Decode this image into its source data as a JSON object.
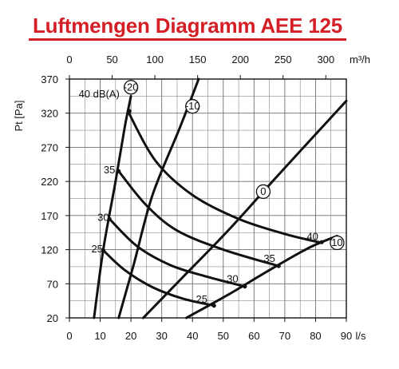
{
  "header": {
    "title": "Luftmengen Diagramm AEE 125"
  },
  "chart_data": {
    "type": "line",
    "title": "Luftmengen Diagramm AEE 125",
    "xlabel": "l/s",
    "x2label": "m³/h",
    "ylabel": "Pt [Pa]",
    "xlim": [
      0,
      90
    ],
    "x2lim": [
      0,
      324
    ],
    "ylim": [
      20,
      370
    ],
    "x_ticks": [
      0,
      10,
      20,
      30,
      40,
      50,
      60,
      70,
      80,
      90
    ],
    "x2_ticks": [
      0,
      50,
      100,
      150,
      200,
      250,
      300
    ],
    "y_ticks": [
      20,
      70,
      120,
      170,
      220,
      270,
      320,
      370
    ],
    "grid": true,
    "annotation": "40 dB(A)",
    "series": [
      {
        "name": "-20",
        "kind": "damper",
        "label_at": [
          20,
          358
        ],
        "points": [
          [
            8,
            20
          ],
          [
            11,
            120
          ],
          [
            15,
            220
          ],
          [
            18,
            300
          ],
          [
            20,
            345
          ]
        ]
      },
      {
        "name": "-10",
        "kind": "damper",
        "label_at": [
          40,
          330
        ],
        "points": [
          [
            16,
            20
          ],
          [
            21,
            100
          ],
          [
            27,
            200
          ],
          [
            36,
            300
          ],
          [
            42,
            370
          ]
        ]
      },
      {
        "name": "0",
        "kind": "damper",
        "label_at": [
          63,
          205
        ],
        "points": [
          [
            24,
            20
          ],
          [
            38,
            85
          ],
          [
            52,
            150
          ],
          [
            68,
            230
          ],
          [
            90,
            338
          ]
        ]
      },
      {
        "name": "10",
        "kind": "damper",
        "label_at": [
          87,
          130
        ],
        "points": [
          [
            38,
            20
          ],
          [
            52,
            55
          ],
          [
            65,
            90
          ],
          [
            78,
            123
          ],
          [
            87,
            140
          ]
        ]
      },
      {
        "name": "40",
        "kind": "sound",
        "label_at": [
          79,
          140
        ],
        "points": [
          [
            19,
            323
          ],
          [
            28,
            250
          ],
          [
            40,
            200
          ],
          [
            55,
            165
          ],
          [
            70,
            143
          ],
          [
            82,
            130
          ]
        ]
      },
      {
        "name": "35",
        "kind": "sound",
        "label_at": [
          65,
          108
        ],
        "points": [
          [
            16,
            235
          ],
          [
            25,
            185
          ],
          [
            35,
            148
          ],
          [
            50,
            120
          ],
          [
            68,
            96
          ]
        ]
      },
      {
        "name": "30",
        "kind": "sound",
        "label_at": [
          53,
          78
        ],
        "points": [
          [
            13,
            165
          ],
          [
            22,
            125
          ],
          [
            33,
            97
          ],
          [
            45,
            80
          ],
          [
            57,
            66
          ]
        ]
      },
      {
        "name": "25",
        "kind": "sound",
        "label_at": [
          43,
          48
        ],
        "points": [
          [
            11,
            119
          ],
          [
            18,
            90
          ],
          [
            27,
            65
          ],
          [
            37,
            48
          ],
          [
            47,
            38
          ]
        ]
      }
    ]
  }
}
